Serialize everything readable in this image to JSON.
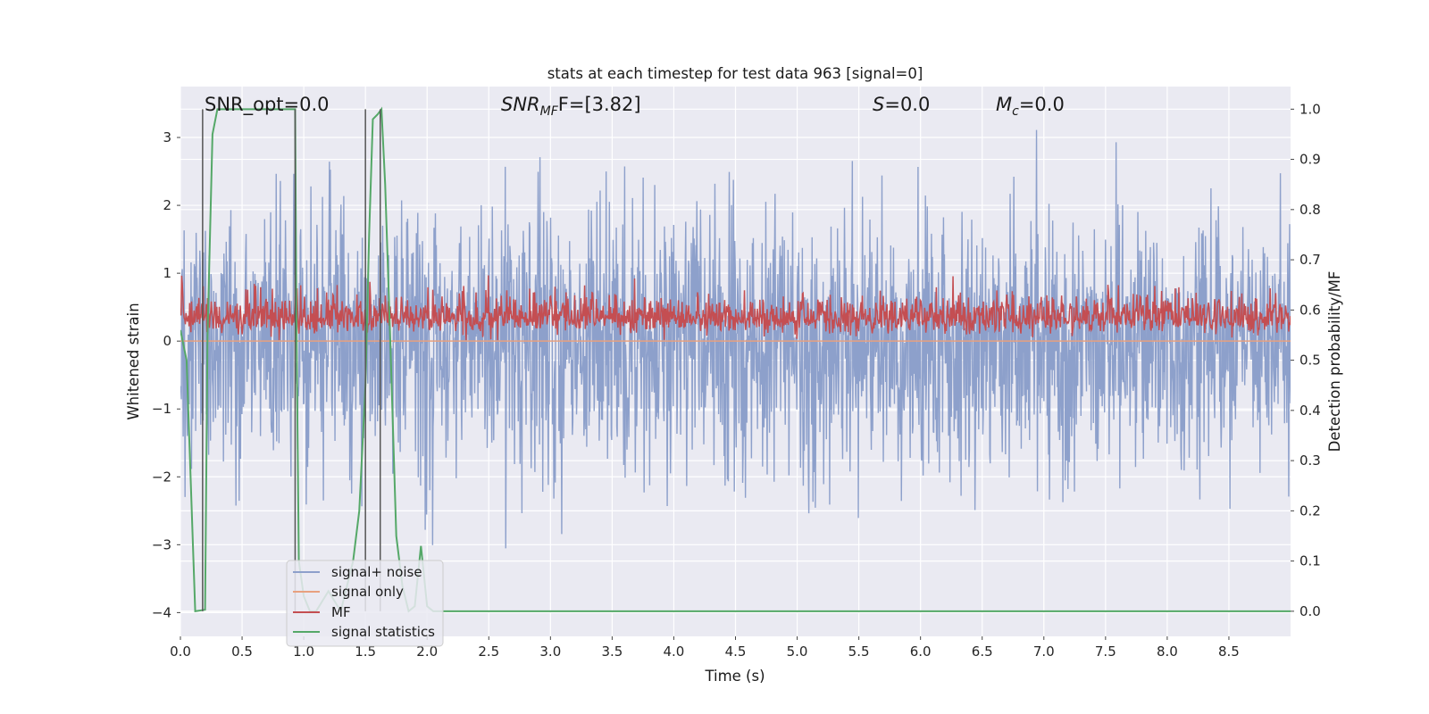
{
  "chart_data": {
    "type": "line",
    "title": "stats at each timestep for test data 963 [signal=0]",
    "xlabel": "Time (s)",
    "ylabel": "Whitened strain",
    "y2label": "Detection probability/MF",
    "xlim": [
      0.0,
      9.0
    ],
    "ylim": [
      -4.35,
      3.75
    ],
    "y2lim": [
      -0.05,
      1.045
    ],
    "xticks": [
      "0.0",
      "0.5",
      "1.0",
      "1.5",
      "2.0",
      "2.5",
      "3.0",
      "3.5",
      "4.0",
      "4.5",
      "5.0",
      "5.5",
      "6.0",
      "6.5",
      "7.0",
      "7.5",
      "8.0",
      "8.5"
    ],
    "yticks": [
      "3",
      "2",
      "1",
      "0",
      "−1",
      "−2",
      "−3",
      "−4"
    ],
    "y2ticks": [
      "1.0",
      "0.9",
      "0.8",
      "0.7",
      "0.6",
      "0.5",
      "0.4",
      "0.3",
      "0.2",
      "0.1",
      "0.0"
    ],
    "grid": true,
    "legend_position": "lower-left",
    "annotations": {
      "snr_opt": "SNR_opt=0.0",
      "snr_mf_prefix": "SNR",
      "snr_mf_sub": "MF",
      "snr_mf_value": "F=[3.82]",
      "s_symbol": "S",
      "s_value": "=0.0",
      "mc_symbol": "M",
      "mc_sub": "c",
      "mc_value": "=0.0"
    },
    "series": [
      {
        "name": "signal+ noise",
        "color": "#8da0cb",
        "axis": "left",
        "description_stats": {
          "center": 0.0,
          "std": 0.95,
          "min": -4.05,
          "max": 3.4
        }
      },
      {
        "name": "signal only",
        "color": "#e8a07f",
        "axis": "left",
        "values_constant": 0.0
      },
      {
        "name": "MF",
        "color": "#c44e52",
        "axis": "right",
        "description_stats": {
          "center": 0.585,
          "min": 0.54,
          "max": 0.68
        }
      },
      {
        "name": "signal statistics",
        "color": "#55a868",
        "axis": "right",
        "x": [
          0.0,
          0.05,
          0.12,
          0.2,
          0.22,
          0.26,
          0.3,
          0.5,
          0.7,
          0.9,
          0.93,
          0.94,
          0.96,
          1.0,
          1.05,
          1.1,
          1.15,
          1.2,
          1.25,
          1.3,
          1.35,
          1.4,
          1.45,
          1.5,
          1.53,
          1.56,
          1.6,
          1.63,
          1.66,
          1.7,
          1.75,
          1.8,
          1.85,
          1.9,
          1.95,
          2.0,
          2.05,
          2.1,
          2.5,
          3.0,
          4.0,
          5.0,
          6.0,
          7.0,
          8.0,
          9.0
        ],
        "values": [
          0.56,
          0.5,
          0.0,
          0.003,
          0.55,
          0.95,
          1.0,
          1.0,
          1.0,
          1.0,
          1.0,
          0.6,
          0.1,
          0.03,
          0.0,
          0.0,
          0.02,
          0.04,
          0.02,
          0.0,
          0.05,
          0.1,
          0.2,
          0.45,
          0.75,
          0.98,
          0.99,
          1.0,
          0.85,
          0.55,
          0.15,
          0.05,
          0.0,
          0.01,
          0.13,
          0.01,
          0.0,
          0.0,
          0.0,
          0.0,
          0.0,
          0.0,
          0.0,
          0.0,
          0.0,
          0.0
        ]
      }
    ],
    "vertical_markers_x": [
      0.18,
      0.93,
      1.5,
      1.62
    ]
  }
}
